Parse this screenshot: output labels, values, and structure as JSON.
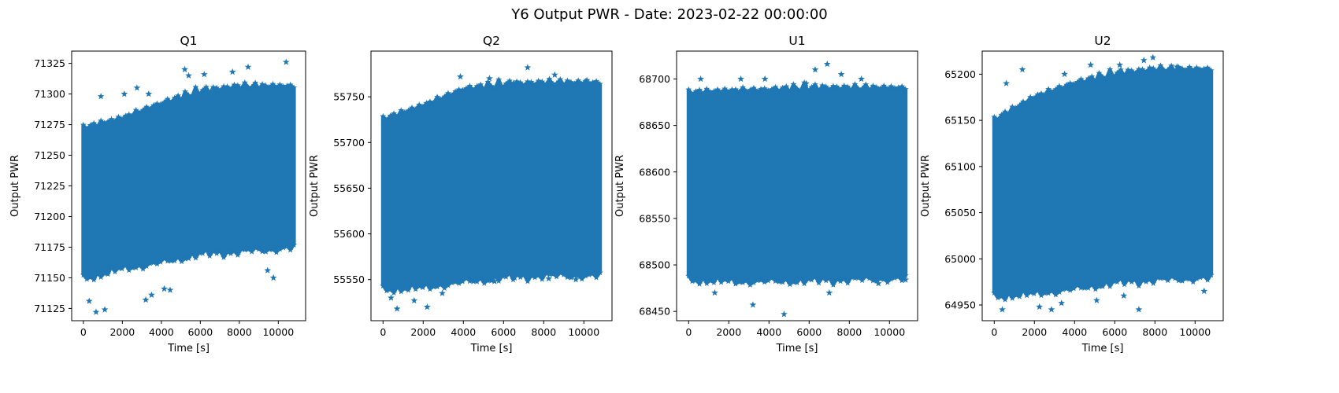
{
  "figure": {
    "suptitle": "Y6 Output PWR - Date: 2023-02-22 00:00:00",
    "marker_color": "#1f77b4",
    "marker": "star"
  },
  "chart_data": [
    {
      "type": "scatter",
      "title": "Q1",
      "xlabel": "Time [s]",
      "ylabel": "Output PWR",
      "xlim": [
        -600,
        11400
      ],
      "ylim": [
        71115,
        71335
      ],
      "xticks": [
        0,
        2000,
        4000,
        6000,
        8000,
        10000
      ],
      "yticks": [
        71125,
        71150,
        71175,
        71200,
        71225,
        71250,
        71275,
        71300,
        71325
      ],
      "x_range": [
        0,
        10800
      ],
      "band": {
        "x": [
          0,
          2000,
          4000,
          6000,
          8000,
          10800
        ],
        "low": [
          71150,
          71158,
          71163,
          71170,
          71172,
          71175
        ],
        "high": [
          71272,
          71280,
          71292,
          71302,
          71306,
          71306
        ]
      },
      "outliers": [
        [
          650,
          71122
        ],
        [
          1100,
          71124
        ],
        [
          300,
          71131
        ],
        [
          3200,
          71132
        ],
        [
          3500,
          71136
        ],
        [
          4450,
          71140
        ],
        [
          4150,
          71141
        ],
        [
          9750,
          71150
        ],
        [
          9450,
          71156
        ],
        [
          900,
          71298
        ],
        [
          2100,
          71300
        ],
        [
          2750,
          71305
        ],
        [
          3350,
          71300
        ],
        [
          5200,
          71320
        ],
        [
          5400,
          71315
        ],
        [
          8450,
          71322
        ],
        [
          7650,
          71318
        ],
        [
          10400,
          71326
        ],
        [
          6200,
          71316
        ]
      ]
    },
    {
      "type": "scatter",
      "title": "Q2",
      "xlabel": "Time [s]",
      "ylabel": "Output PWR",
      "xlim": [
        -600,
        11400
      ],
      "ylim": [
        55505,
        55800
      ],
      "xticks": [
        0,
        2000,
        4000,
        6000,
        8000,
        10000
      ],
      "yticks": [
        55550,
        55600,
        55650,
        55700,
        55750
      ],
      "x_range": [
        0,
        10800
      ],
      "band": {
        "x": [
          0,
          2000,
          4000,
          6000,
          8000,
          10800
        ],
        "low": [
          55540,
          55542,
          55548,
          55553,
          55555,
          55555
        ],
        "high": [
          55725,
          55740,
          55758,
          55763,
          55765,
          55765
        ]
      },
      "outliers": [
        [
          700,
          55518
        ],
        [
          2200,
          55520
        ],
        [
          1550,
          55527
        ],
        [
          400,
          55530
        ],
        [
          2950,
          55535
        ],
        [
          5550,
          55548
        ],
        [
          6550,
          55552
        ],
        [
          8250,
          55551
        ],
        [
          9600,
          55550
        ],
        [
          7200,
          55782
        ],
        [
          3850,
          55772
        ],
        [
          5300,
          55770
        ],
        [
          8550,
          55774
        ],
        [
          10150,
          55768
        ],
        [
          6500,
          55765
        ]
      ]
    },
    {
      "type": "scatter",
      "title": "U1",
      "xlabel": "Time [s]",
      "ylabel": "Output PWR",
      "xlim": [
        -600,
        11400
      ],
      "ylim": [
        68440,
        68730
      ],
      "xticks": [
        0,
        2000,
        4000,
        6000,
        8000,
        10000
      ],
      "yticks": [
        68450,
        68500,
        68550,
        68600,
        68650,
        68700
      ],
      "x_range": [
        0,
        10800
      ],
      "band": {
        "x": [
          0,
          2000,
          4000,
          6000,
          8000,
          10800
        ],
        "low": [
          68485,
          68483,
          68483,
          68484,
          68485,
          68486
        ],
        "high": [
          68685,
          68687,
          68688,
          68690,
          68690,
          68690
        ]
      },
      "outliers": [
        [
          4750,
          68447
        ],
        [
          3200,
          68457
        ],
        [
          1300,
          68470
        ],
        [
          7000,
          68470
        ],
        [
          9450,
          68480
        ],
        [
          10800,
          68484
        ],
        [
          6900,
          68716
        ],
        [
          6300,
          68710
        ],
        [
          600,
          68700
        ],
        [
          2600,
          68700
        ],
        [
          3800,
          68700
        ],
        [
          7600,
          68705
        ],
        [
          8600,
          68700
        ],
        [
          5850,
          68695
        ]
      ]
    },
    {
      "type": "scatter",
      "title": "U2",
      "xlabel": "Time [s]",
      "ylabel": "Output PWR",
      "xlim": [
        -600,
        11400
      ],
      "ylim": [
        64933,
        65225
      ],
      "xticks": [
        0,
        2000,
        4000,
        6000,
        8000,
        10000
      ],
      "yticks": [
        64950,
        65000,
        65050,
        65100,
        65150,
        65200
      ],
      "x_range": [
        0,
        10800
      ],
      "band": {
        "x": [
          0,
          2000,
          4000,
          6000,
          8000,
          10800
        ],
        "low": [
          64960,
          64963,
          64968,
          64975,
          64978,
          64980
        ],
        "high": [
          65150,
          65175,
          65190,
          65200,
          65205,
          65205
        ]
      },
      "outliers": [
        [
          7200,
          64945
        ],
        [
          2850,
          64945
        ],
        [
          2250,
          64948
        ],
        [
          400,
          64945
        ],
        [
          3350,
          64952
        ],
        [
          5100,
          64955
        ],
        [
          6450,
          64960
        ],
        [
          10450,
          64965
        ],
        [
          7900,
          65218
        ],
        [
          7450,
          65215
        ],
        [
          6250,
          65210
        ],
        [
          4800,
          65210
        ],
        [
          1400,
          65205
        ],
        [
          3500,
          65200
        ],
        [
          600,
          65190
        ],
        [
          9100,
          65208
        ]
      ]
    }
  ]
}
